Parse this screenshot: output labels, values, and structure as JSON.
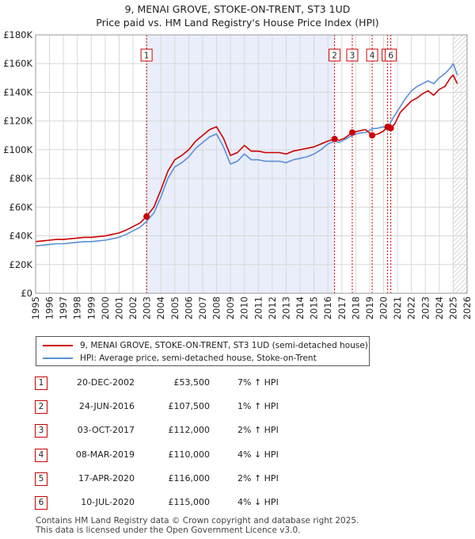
{
  "title_line1": "9, MENAI GROVE, STOKE-ON-TRENT, ST3 1UD",
  "title_line2": "Price paid vs. HM Land Registry's House Price Index (HPI)",
  "legend": {
    "property": "9, MENAI GROVE, STOKE-ON-TRENT, ST3 1UD (semi-detached house)",
    "hpi": "HPI: Average price, semi-detached house, Stoke-on-Trent"
  },
  "transactions": [
    {
      "num": "1",
      "date": "20-DEC-2002",
      "price": "£53,500",
      "pct": "7% ↑ HPI"
    },
    {
      "num": "2",
      "date": "24-JUN-2016",
      "price": "£107,500",
      "pct": "1% ↑ HPI"
    },
    {
      "num": "3",
      "date": "03-OCT-2017",
      "price": "£112,000",
      "pct": "2% ↑ HPI"
    },
    {
      "num": "4",
      "date": "08-MAR-2019",
      "price": "£110,000",
      "pct": "4% ↓ HPI"
    },
    {
      "num": "5",
      "date": "17-APR-2020",
      "price": "£116,000",
      "pct": "2% ↑ HPI"
    },
    {
      "num": "6",
      "date": "10-JUL-2020",
      "price": "£115,000",
      "pct": "4% ↓ HPI"
    }
  ],
  "footer_line1": "Contains HM Land Registry data © Crown copyright and database right 2025.",
  "footer_line2": "This data is licensed under the Open Government Licence v3.0.",
  "colors": {
    "property": "#cc0000",
    "hpi": "#5b8fd6",
    "shade": "#e9eefa",
    "hatch": "#bbbbbb"
  },
  "chart_data": {
    "type": "line",
    "xlim": [
      1995,
      2026
    ],
    "ylim": [
      0,
      180000
    ],
    "x_ticks": [
      "1995",
      "1996",
      "1997",
      "1998",
      "1999",
      "2000",
      "2001",
      "2002",
      "2003",
      "2004",
      "2005",
      "2006",
      "2007",
      "2008",
      "2009",
      "2010",
      "2011",
      "2012",
      "2013",
      "2014",
      "2015",
      "2016",
      "2017",
      "2018",
      "2019",
      "2020",
      "2021",
      "2022",
      "2023",
      "2024",
      "2025",
      "2026"
    ],
    "y_ticks": [
      {
        "value": 0,
        "label": "£0"
      },
      {
        "value": 20000,
        "label": "£20K"
      },
      {
        "value": 40000,
        "label": "£40K"
      },
      {
        "value": 60000,
        "label": "£60K"
      },
      {
        "value": 80000,
        "label": "£80K"
      },
      {
        "value": 100000,
        "label": "£100K"
      },
      {
        "value": 120000,
        "label": "£120K"
      },
      {
        "value": 140000,
        "label": "£140K"
      },
      {
        "value": 160000,
        "label": "£160K"
      },
      {
        "value": 180000,
        "label": "£180K"
      }
    ],
    "shaded_ranges": [
      [
        2002.97,
        2016.48
      ]
    ],
    "hatch_from": 2025.0,
    "series": [
      {
        "name": "9, MENAI GROVE, STOKE-ON-TRENT, ST3 1UD (semi-detached house)",
        "x": [
          1995.0,
          1995.5,
          1996.0,
          1996.5,
          1997.0,
          1997.5,
          1998.0,
          1998.5,
          1999.0,
          1999.5,
          2000.0,
          2000.5,
          2001.0,
          2001.5,
          2002.0,
          2002.5,
          2002.97,
          2003.5,
          2004.0,
          2004.5,
          2005.0,
          2005.5,
          2006.0,
          2006.5,
          2007.0,
          2007.5,
          2008.0,
          2008.5,
          2009.0,
          2009.5,
          2010.0,
          2010.5,
          2011.0,
          2011.5,
          2012.0,
          2012.5,
          2013.0,
          2013.5,
          2014.0,
          2014.5,
          2015.0,
          2015.5,
          2016.0,
          2016.48,
          2016.8,
          2017.2,
          2017.75,
          2018.2,
          2018.7,
          2019.18,
          2019.6,
          2020.0,
          2020.29,
          2020.52,
          2020.8,
          2021.2,
          2021.6,
          2022.0,
          2022.4,
          2022.8,
          2023.2,
          2023.6,
          2024.0,
          2024.4,
          2024.8,
          2025.0,
          2025.3
        ],
        "y": [
          36000,
          36500,
          37000,
          37500,
          37500,
          38000,
          38500,
          39000,
          39000,
          39500,
          40000,
          41000,
          42000,
          44000,
          46500,
          49000,
          53500,
          60000,
          72000,
          85000,
          93000,
          96000,
          100000,
          106000,
          110000,
          114000,
          116000,
          108000,
          96000,
          98000,
          103000,
          99000,
          99000,
          98000,
          98000,
          98000,
          97000,
          99000,
          100000,
          101000,
          102000,
          104000,
          106000,
          107500,
          106500,
          108000,
          112000,
          113000,
          114000,
          110000,
          111000,
          113000,
          116000,
          115000,
          118000,
          126000,
          130000,
          134000,
          136000,
          139000,
          141000,
          138000,
          142000,
          144000,
          150000,
          152000,
          146000
        ]
      },
      {
        "name": "HPI: Average price, semi-detached house, Stoke-on-Trent",
        "x": [
          1995.0,
          1995.5,
          1996.0,
          1996.5,
          1997.0,
          1997.5,
          1998.0,
          1998.5,
          1999.0,
          1999.5,
          2000.0,
          2000.5,
          2001.0,
          2001.5,
          2002.0,
          2002.5,
          2002.97,
          2003.5,
          2004.0,
          2004.5,
          2005.0,
          2005.5,
          2006.0,
          2006.5,
          2007.0,
          2007.5,
          2008.0,
          2008.5,
          2009.0,
          2009.5,
          2010.0,
          2010.5,
          2011.0,
          2011.5,
          2012.0,
          2012.5,
          2013.0,
          2013.5,
          2014.0,
          2014.5,
          2015.0,
          2015.5,
          2016.0,
          2016.48,
          2016.8,
          2017.2,
          2017.75,
          2018.2,
          2018.7,
          2019.18,
          2019.6,
          2020.0,
          2020.29,
          2020.52,
          2020.8,
          2021.2,
          2021.6,
          2022.0,
          2022.4,
          2022.8,
          2023.2,
          2023.6,
          2024.0,
          2024.4,
          2024.8,
          2025.0,
          2025.3
        ],
        "y": [
          33000,
          33500,
          34000,
          34500,
          34500,
          35000,
          35500,
          36000,
          36000,
          36500,
          37000,
          38000,
          39000,
          41000,
          43500,
          46000,
          50000,
          56000,
          67000,
          80000,
          88000,
          91000,
          95000,
          101000,
          105000,
          109000,
          111000,
          102000,
          90000,
          92000,
          97000,
          93000,
          93000,
          92000,
          92000,
          92000,
          91000,
          93000,
          94000,
          95000,
          97000,
          100000,
          104000,
          106000,
          105000,
          107000,
          110000,
          111500,
          112000,
          114500,
          115000,
          116000,
          113500,
          119500,
          124000,
          130000,
          136000,
          141000,
          144000,
          146000,
          148000,
          146000,
          150000,
          153000,
          157000,
          160000,
          152000
        ]
      }
    ],
    "sales": [
      {
        "label": "1",
        "x": 2002.97,
        "y": 53500
      },
      {
        "label": "2",
        "x": 2016.48,
        "y": 107500
      },
      {
        "label": "3",
        "x": 2017.75,
        "y": 112000
      },
      {
        "label": "4",
        "x": 2019.18,
        "y": 110000
      },
      {
        "label": "5",
        "x": 2020.29,
        "y": 116000
      },
      {
        "label": "6",
        "x": 2020.52,
        "y": 115000
      }
    ]
  }
}
